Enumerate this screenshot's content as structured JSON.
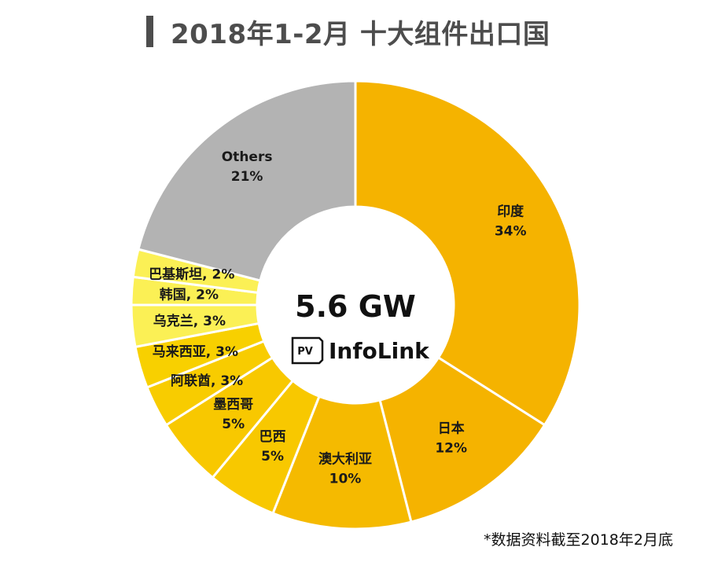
{
  "title": "2018年1-2月 十大组件出口国",
  "footnote": "*数据资料截至2018年2月底",
  "center": {
    "total": "5.6 GW",
    "logo_prefix": "PV",
    "logo_name": "InfoLink"
  },
  "chart_data": {
    "type": "pie",
    "style": "donut",
    "title": "2018年1-2月 十大组件出口国",
    "legend": "none",
    "slices": [
      {
        "label": "印度",
        "value": 34,
        "display": "34%",
        "color": "#F5B300"
      },
      {
        "label": "日本",
        "value": 12,
        "display": "12%",
        "color": "#F5B300"
      },
      {
        "label": "澳大利亚",
        "value": 10,
        "display": "10%",
        "color": "#F5BA00"
      },
      {
        "label": "巴西",
        "value": 5,
        "display": "5%",
        "color": "#F8C800"
      },
      {
        "label": "墨西哥",
        "value": 5,
        "display": "5%",
        "color": "#F8C800"
      },
      {
        "label": "阿联酋",
        "value": 3,
        "display": "3%",
        "color": "#F8CC00"
      },
      {
        "label": "马来西亚",
        "value": 3,
        "display": "3%",
        "color": "#F8D000"
      },
      {
        "label": "乌克兰",
        "value": 3,
        "display": "3%",
        "color": "#FBF055"
      },
      {
        "label": "韩国",
        "value": 2,
        "display": "2%",
        "color": "#FBF055"
      },
      {
        "label": "巴基斯坦",
        "value": 2,
        "display": "2%",
        "color": "#FBF055"
      },
      {
        "label": "Others",
        "value": 21,
        "display": "21%",
        "color": "#B3B3B3"
      }
    ]
  }
}
